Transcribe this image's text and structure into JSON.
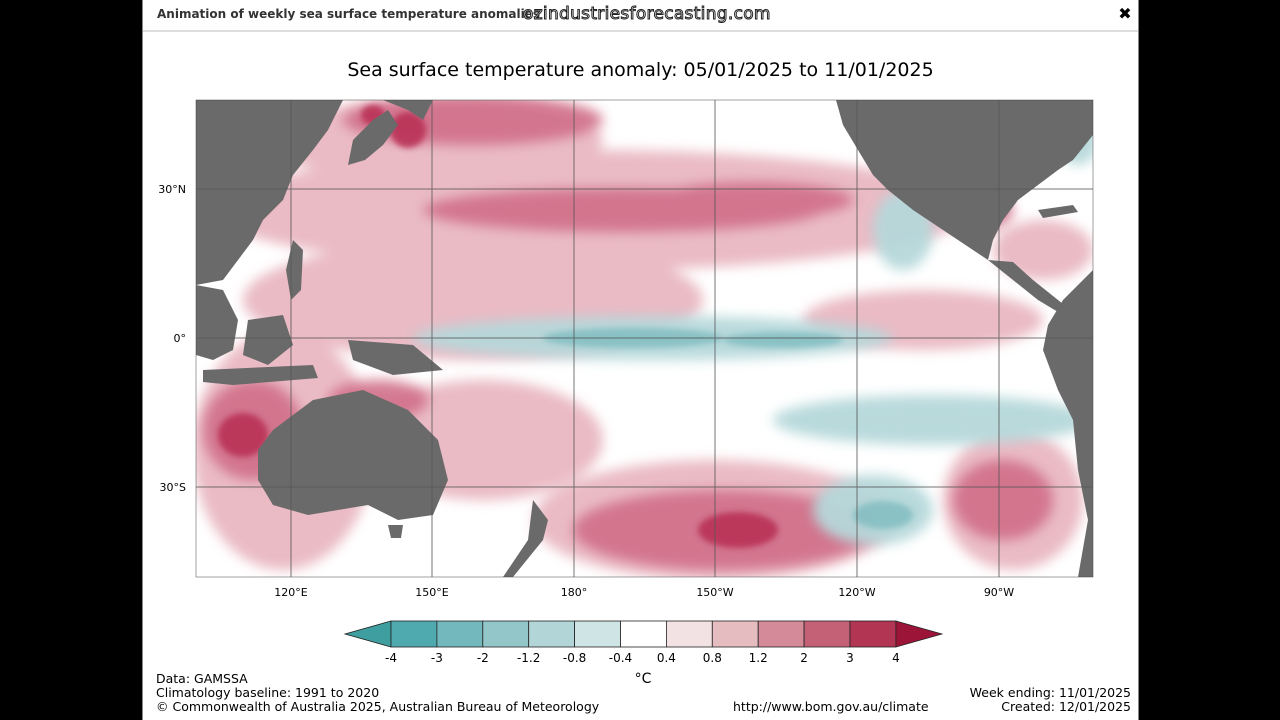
{
  "window": {
    "title": "Animation of weekly sea surface temperature anomalies",
    "watermark": "ozindustriesforecasting.com",
    "close_glyph": "✖"
  },
  "map": {
    "title": "Sea surface temperature anomaly: 05/01/2025 to 11/01/2025",
    "lat_labels": [
      "30°N",
      "0°",
      "30°S"
    ],
    "lon_labels": [
      "120°E",
      "150°E",
      "180°",
      "150°W",
      "120°W",
      "90°W"
    ],
    "colors": {
      "land": "#6a6a6a",
      "grid": "#555555",
      "warm_strong": "#b82e52",
      "warm_mid": "#d06e88",
      "warm_light": "#e8b4bf",
      "cool_light": "#b6d8da",
      "cool_mid": "#7fbcc0"
    }
  },
  "colorbar": {
    "ticks": [
      "-4",
      "-3",
      "-2",
      "-1.2",
      "-0.8",
      "-0.4",
      "0.4",
      "0.8",
      "1.2",
      "2",
      "3",
      "4"
    ],
    "colors": [
      "#3e9ea0",
      "#4faab0",
      "#72b8bc",
      "#93c6c8",
      "#b2d6d7",
      "#cfe4e4",
      "#ffffff",
      "#f3e2e3",
      "#e5bdc1",
      "#d48a98",
      "#c56176",
      "#b23553",
      "#9c1538"
    ],
    "unit": "°C"
  },
  "footer": {
    "data": "Data: GAMSSA",
    "baseline": "Climatology baseline: 1991 to 2020",
    "copyright": "© Commonwealth of Australia 2025, Australian Bureau of Meteorology",
    "url": "http://www.bom.gov.au/climate",
    "week_ending": "Week ending: 11/01/2025",
    "created": "Created: 12/01/2025"
  }
}
